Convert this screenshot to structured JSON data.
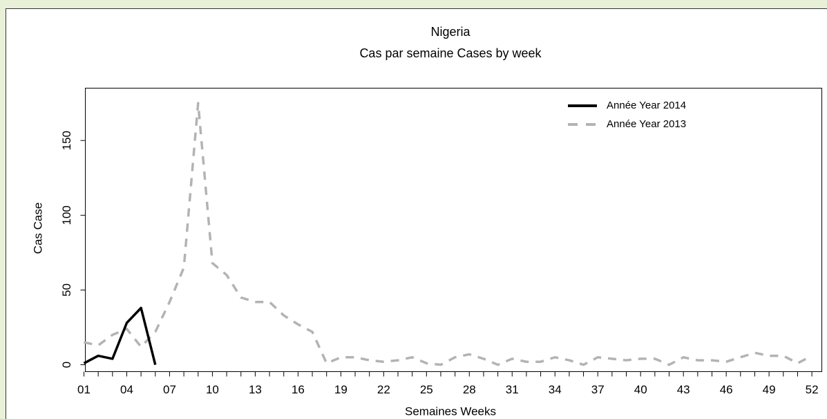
{
  "chart_data": {
    "type": "line",
    "title": "Nigeria",
    "subtitle": "Cas par semaine Cases by week",
    "xlabel": "Semaines Weeks",
    "ylabel": "Cas Case",
    "x": [
      1,
      2,
      3,
      4,
      5,
      6,
      7,
      8,
      9,
      10,
      11,
      12,
      13,
      14,
      15,
      16,
      17,
      18,
      19,
      20,
      21,
      22,
      23,
      24,
      25,
      26,
      27,
      28,
      29,
      30,
      31,
      32,
      33,
      34,
      35,
      36,
      37,
      38,
      39,
      40,
      41,
      42,
      43,
      44,
      45,
      46,
      47,
      48,
      49,
      50,
      51,
      52
    ],
    "series": [
      {
        "name": "Année Year 2014",
        "color": "#000000",
        "linestyle": "solid",
        "values": [
          1,
          6,
          4,
          28,
          38,
          0,
          null,
          null,
          null,
          null,
          null,
          null,
          null,
          null,
          null,
          null,
          null,
          null,
          null,
          null,
          null,
          null,
          null,
          null,
          null,
          null,
          null,
          null,
          null,
          null,
          null,
          null,
          null,
          null,
          null,
          null,
          null,
          null,
          null,
          null,
          null,
          null,
          null,
          null,
          null,
          null,
          null,
          null,
          null,
          null,
          null,
          null
        ]
      },
      {
        "name": "Année Year 2013",
        "color": "#b3b3b3",
        "linestyle": "dashed",
        "values": [
          15,
          13,
          20,
          24,
          12,
          22,
          42,
          65,
          175,
          68,
          60,
          45,
          42,
          42,
          33,
          27,
          22,
          1,
          5,
          5,
          3,
          2,
          3,
          5,
          1,
          0,
          5,
          7,
          4,
          0,
          4,
          2,
          2,
          5,
          3,
          0,
          5,
          4,
          3,
          4,
          4,
          0,
          5,
          3,
          3,
          2,
          5,
          8,
          6,
          6,
          1,
          6
        ]
      }
    ],
    "xlim": [
      1,
      52.6
    ],
    "ylim": [
      -4.6,
      185
    ],
    "xticks": [
      {
        "value": 1,
        "label": "01"
      },
      {
        "value": 4,
        "label": "04"
      },
      {
        "value": 7,
        "label": "07"
      },
      {
        "value": 10,
        "label": "10"
      },
      {
        "value": 13,
        "label": "13"
      },
      {
        "value": 16,
        "label": "16"
      },
      {
        "value": 19,
        "label": "19"
      },
      {
        "value": 22,
        "label": "22"
      },
      {
        "value": 25,
        "label": "25"
      },
      {
        "value": 28,
        "label": "28"
      },
      {
        "value": 31,
        "label": "31"
      },
      {
        "value": 34,
        "label": "34"
      },
      {
        "value": 37,
        "label": "37"
      },
      {
        "value": 40,
        "label": "40"
      },
      {
        "value": 43,
        "label": "43"
      },
      {
        "value": 46,
        "label": "46"
      },
      {
        "value": 49,
        "label": "49"
      },
      {
        "value": 52,
        "label": "52"
      }
    ],
    "xminorticks": [
      2,
      3,
      5,
      6,
      8,
      9,
      11,
      12,
      14,
      15,
      17,
      18,
      20,
      21,
      23,
      24,
      26,
      27,
      29,
      30,
      32,
      33,
      35,
      36,
      38,
      39,
      41,
      42,
      44,
      45,
      47,
      48,
      50,
      51
    ],
    "yticks": [
      0,
      50,
      100,
      150
    ],
    "legend": "top-right",
    "grid": false
  }
}
